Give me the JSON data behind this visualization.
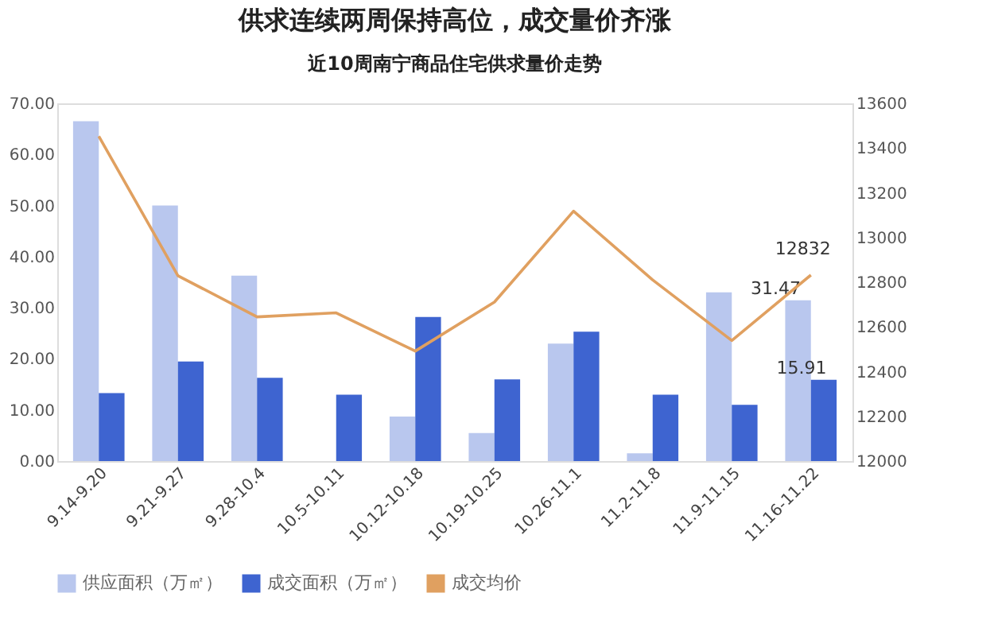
{
  "chart_data": {
    "type": "bar",
    "title": "供求连续两周保持高位，成交量价齐涨",
    "subtitle": "近10周南宁商品住宅供求量价走势",
    "categories": [
      "9.14-9.20",
      "9.21-9.27",
      "9.28-10.4",
      "10.5-10.11",
      "10.12-10.18",
      "10.19-10.25",
      "10.26-11.1",
      "11.2-11.8",
      "11.9-11.15",
      "11.16-11.22"
    ],
    "series": [
      {
        "name": "供应面积（万㎡）",
        "color": "#b9c7ee",
        "values": [
          66.5,
          50.0,
          36.3,
          null,
          8.7,
          5.5,
          23.0,
          1.5,
          33.0,
          31.47
        ],
        "value_labels": [
          null,
          null,
          null,
          null,
          null,
          null,
          null,
          null,
          null,
          "31.47"
        ]
      },
      {
        "name": "成交面积（万㎡）",
        "color": "#3e64d0",
        "values": [
          13.3,
          19.5,
          16.3,
          13.0,
          28.2,
          16.0,
          25.3,
          13.0,
          11.0,
          15.91
        ],
        "value_labels": [
          null,
          null,
          null,
          null,
          null,
          null,
          null,
          null,
          null,
          "15.91"
        ]
      },
      {
        "name": "成交均价",
        "type": "line",
        "axis": "y2",
        "color": "#e0a060",
        "values": [
          13453,
          12829,
          12645,
          12663,
          12492,
          12711,
          13118,
          12810,
          12539,
          12832
        ],
        "value_labels": [
          null,
          null,
          null,
          null,
          null,
          null,
          null,
          null,
          null,
          "12832"
        ]
      }
    ],
    "ylim": [
      0,
      70
    ],
    "yticks": [
      {
        "value": 0,
        "label": "0.00"
      },
      {
        "value": 10,
        "label": "10.00"
      },
      {
        "value": 20,
        "label": "20.00"
      },
      {
        "value": 30,
        "label": "30.00"
      },
      {
        "value": 40,
        "label": "40.00"
      },
      {
        "value": 50,
        "label": "50.00"
      },
      {
        "value": 60,
        "label": "60.00"
      },
      {
        "value": 70,
        "label": "70.00"
      }
    ],
    "y2lim": [
      12000,
      13600
    ],
    "y2ticks": [
      12000,
      12200,
      12400,
      12600,
      12800,
      13000,
      13200,
      13400,
      13600
    ],
    "grid": false,
    "legend": "bottom"
  }
}
